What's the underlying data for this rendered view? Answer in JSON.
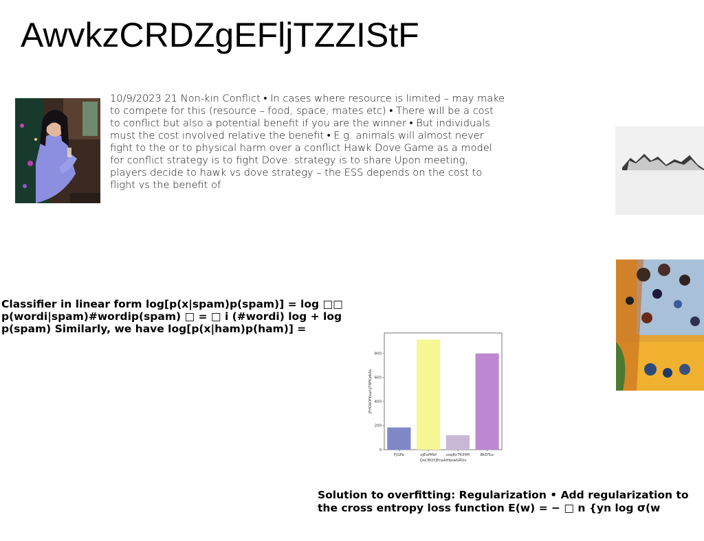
{
  "page": {
    "title": "AwvkzCRDZgEFljTZZIStF",
    "paragraph": "10/9/2023 21 Non-kin Conflict • In cases where resource is limited – may make to compete for this (resource – food, space, mates etc) • There will be a cost to conflict but also a potential benefit if you are the winner • But individuals must the cost involved relative the benefit • E.g. animals will almost never fight to the or to physical harm over a conflict Hawk Dove Game as a model for conflict strategy is to fight Dove: strategy is to share Upon meeting, players decide to hawk vs dove strategy – the ESS depends on the cost to flight vs the benefit of",
    "classifier_text": "Classifier in linear form log[p(x|spam)p(spam)] = log □□ p(wordi|spam)#wordip(spam) □ = □ i (#wordi) log + log p(spam) Similarly, we have log[p(x|ham)p(ham)] =",
    "overfitting_text": "Solution to overfitting: Regularization • Add regularization to the cross entropy loss function E(w) = − □ n {yn log σ(w"
  },
  "chart_data": {
    "type": "bar",
    "categories": [
      "FjGFa",
      "ojEofMbf",
      "soqKnTKIHM",
      "BkDTuc"
    ],
    "values": [
      185,
      915,
      120,
      800
    ],
    "colors": [
      "#8088c8",
      "#f7f795",
      "#c9b8d5",
      "#be88d0"
    ],
    "title": "",
    "xlabel": "QoCBQYJPcaAlHJowGRVv",
    "ylabel": "JFHOAOFKoarLJTNPKjdkAk",
    "ylim": [
      0,
      970
    ],
    "yticks": [
      0,
      200,
      400,
      600,
      800
    ],
    "grid": false
  }
}
